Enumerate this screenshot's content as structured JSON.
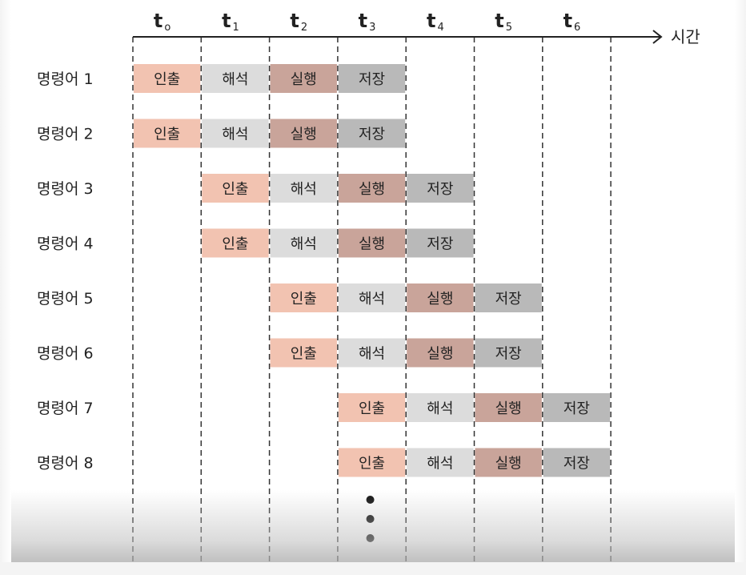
{
  "axis": {
    "label": "시간",
    "ticks": [
      {
        "main": "t",
        "sub": "o"
      },
      {
        "main": "t",
        "sub": "1"
      },
      {
        "main": "t",
        "sub": "2"
      },
      {
        "main": "t",
        "sub": "3"
      },
      {
        "main": "t",
        "sub": "4"
      },
      {
        "main": "t",
        "sub": "5"
      },
      {
        "main": "t",
        "sub": "6"
      }
    ]
  },
  "stages": [
    {
      "label": "인출",
      "color": "#f2c3b1"
    },
    {
      "label": "해석",
      "color": "#dcdcdc"
    },
    {
      "label": "실행",
      "color": "#c9a49a"
    },
    {
      "label": "저장",
      "color": "#b9b9b9"
    }
  ],
  "instructions": [
    {
      "label": "명령어 1",
      "start": 0
    },
    {
      "label": "명령어 2",
      "start": 0
    },
    {
      "label": "명령어 3",
      "start": 1
    },
    {
      "label": "명령어 4",
      "start": 1
    },
    {
      "label": "명령어 5",
      "start": 2
    },
    {
      "label": "명령어 6",
      "start": 2
    },
    {
      "label": "명령어 7",
      "start": 3
    },
    {
      "label": "명령어 8",
      "start": 3
    }
  ],
  "continuation_dots": 3
}
